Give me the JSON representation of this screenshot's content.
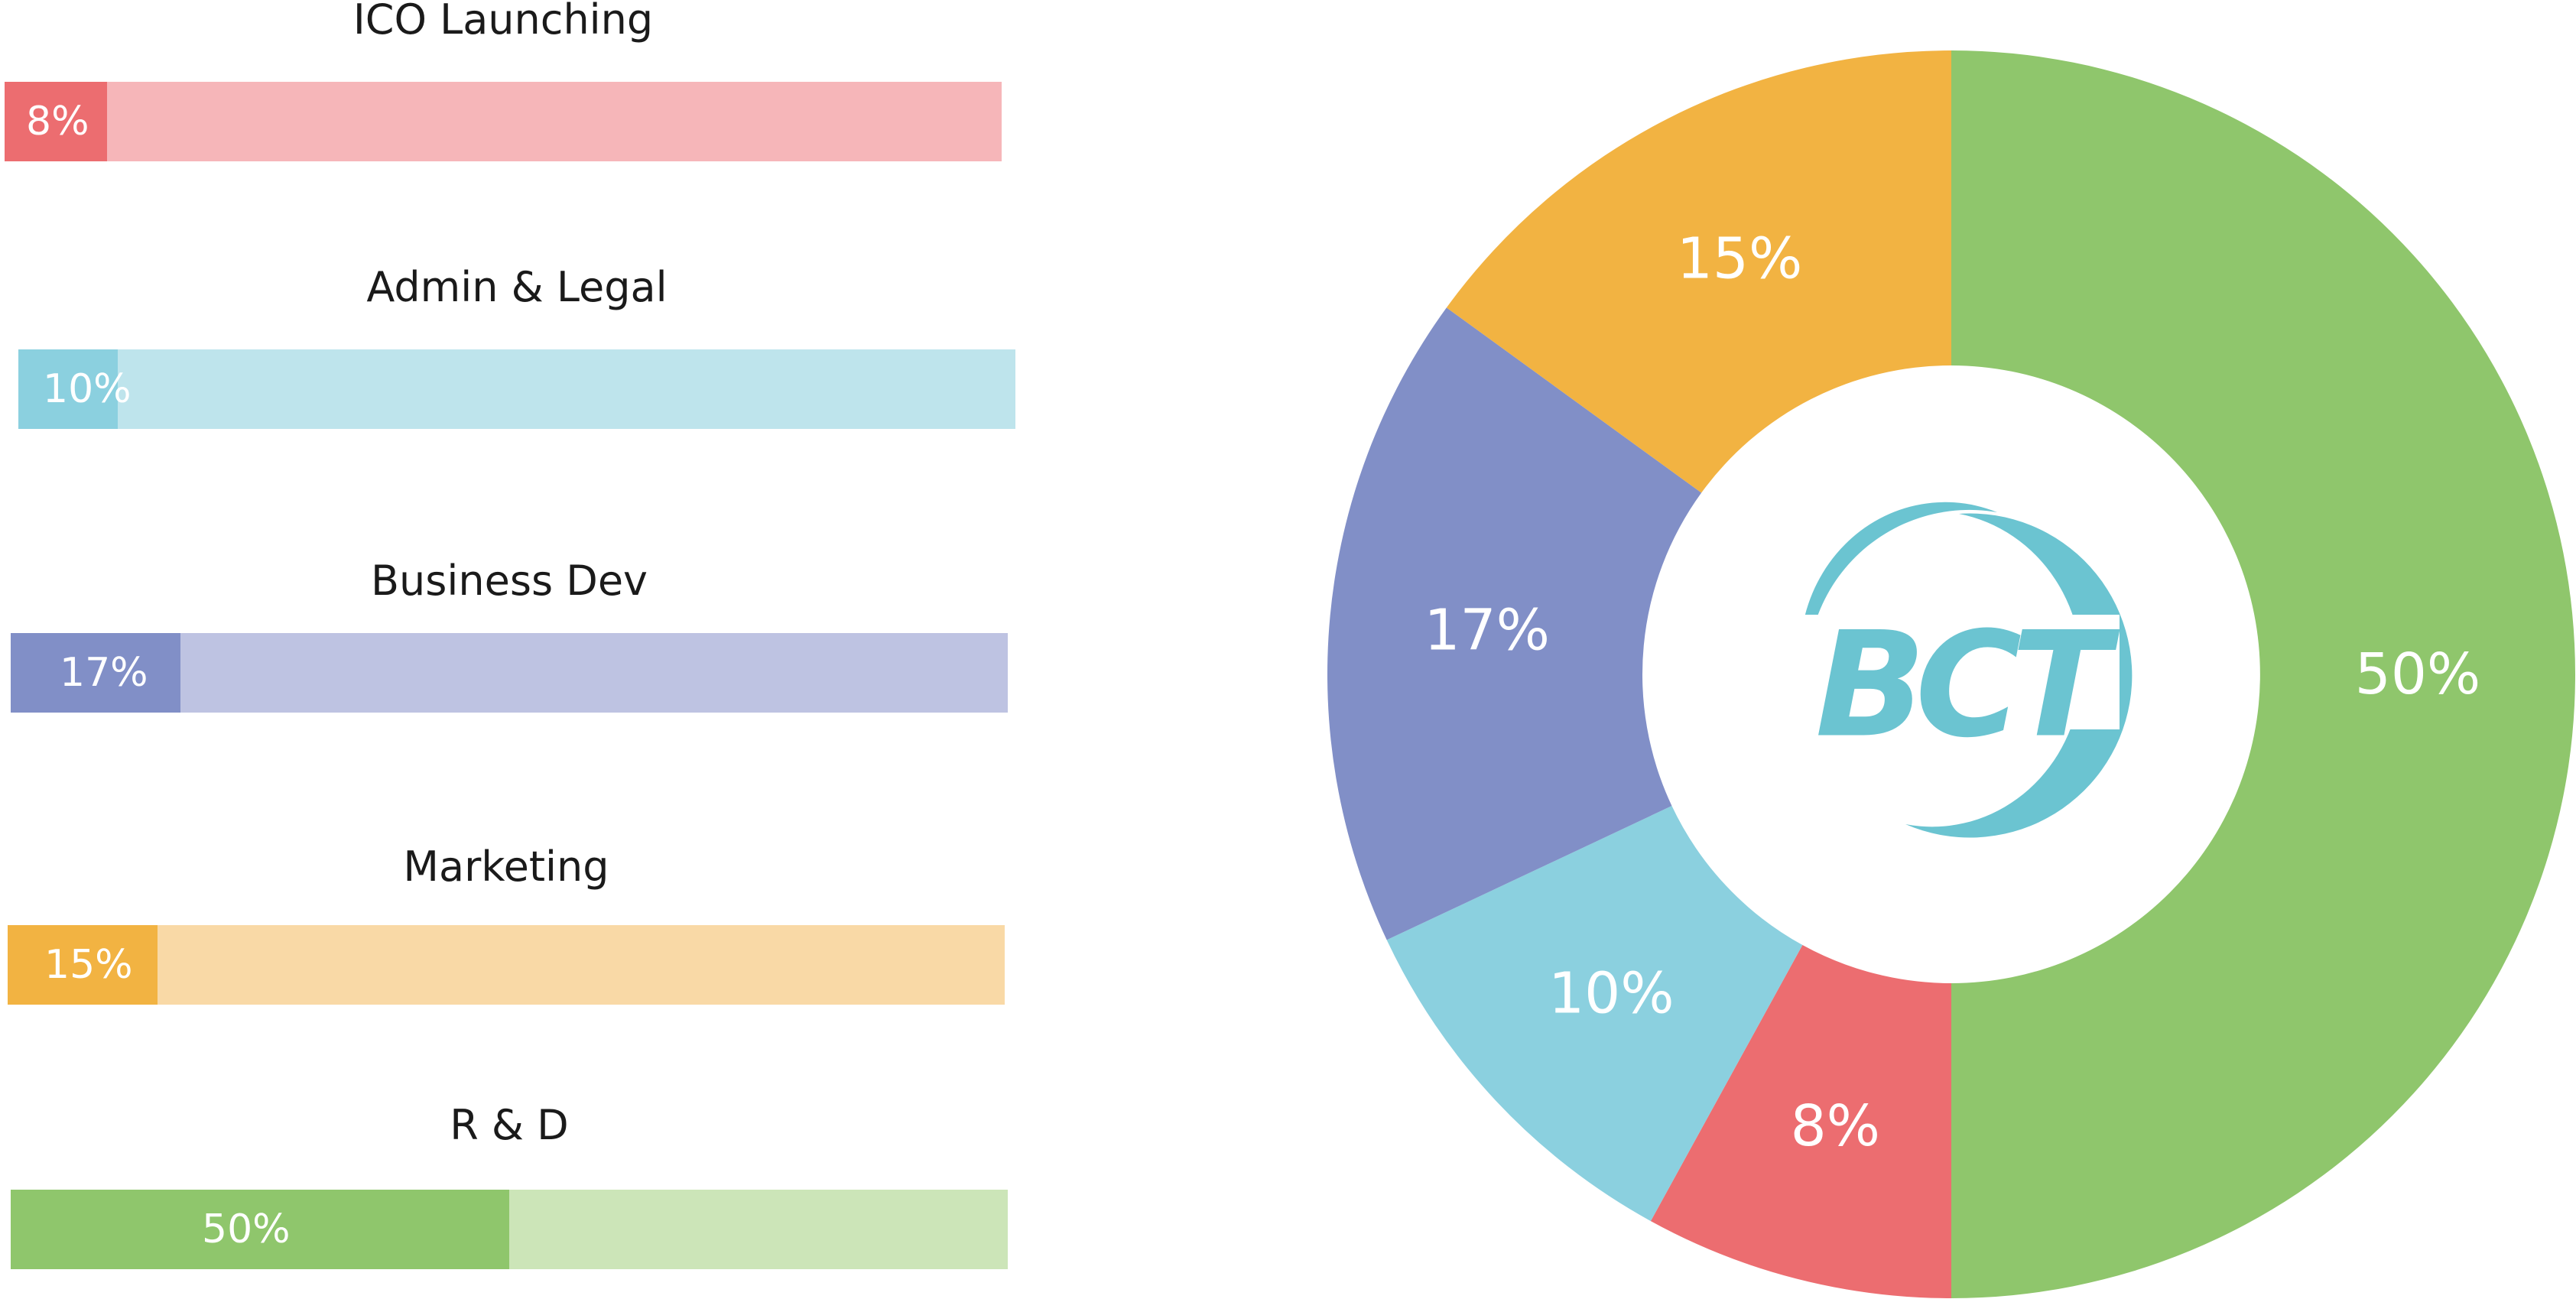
{
  "chart_data": [
    {
      "type": "bar",
      "orientation": "horizontal",
      "categories": [
        "ICO Launching",
        "Admin & Legal",
        "Business Dev",
        "Marketing",
        "R & D"
      ],
      "values": [
        8,
        10,
        17,
        15,
        50
      ],
      "labels": [
        "8%",
        "10%",
        "17%",
        "15%",
        "50%"
      ],
      "colors": [
        "#EC6D70",
        "#8BD0DF",
        "#818FC7",
        "#F2B342",
        "#8FC66C"
      ],
      "track_colors": [
        "#F6B6B9",
        "#BEE4EC",
        "#BEC3E2",
        "#F9D9A6",
        "#CCE5B8"
      ],
      "xlim": [
        0,
        100
      ]
    },
    {
      "type": "pie",
      "variant": "donut",
      "categories": [
        "R & D",
        "ICO Launching",
        "Admin & Legal",
        "Business Dev",
        "Marketing"
      ],
      "values": [
        50,
        8,
        10,
        17,
        15
      ],
      "labels": [
        "50%",
        "8%",
        "10%",
        "17%",
        "15%"
      ],
      "colors": [
        "#8FC66C",
        "#EC6D70",
        "#8BD0DF",
        "#818FC7",
        "#F2B342"
      ],
      "start": "top",
      "direction": "clockwise",
      "center_logo": {
        "text": "BCT",
        "color": "#6BC4D1"
      }
    }
  ]
}
